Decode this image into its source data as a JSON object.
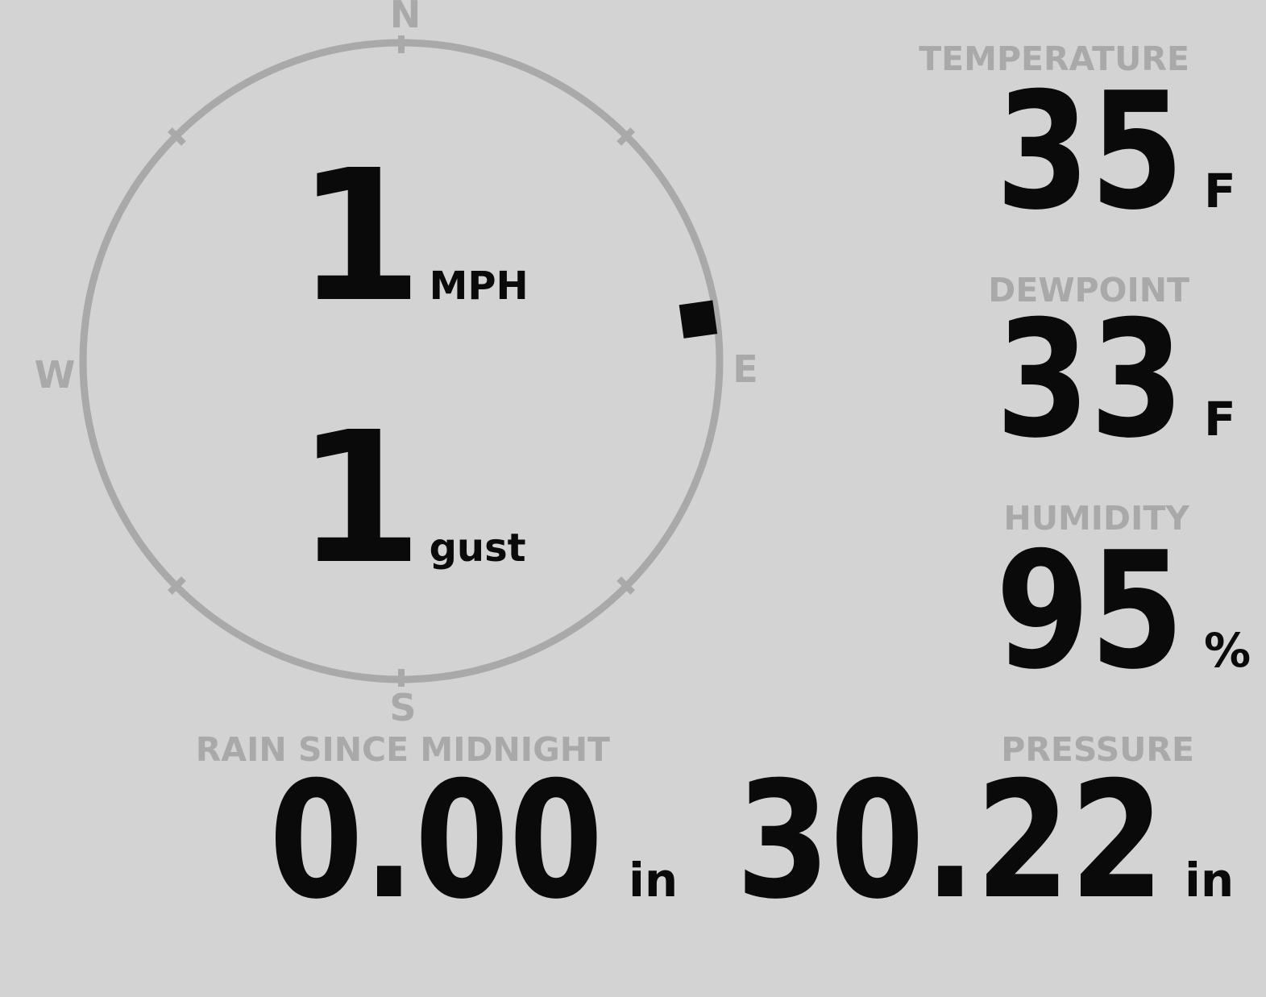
{
  "display": {
    "background_color": "#d3d3d3",
    "muted_color": "#a9a9a9",
    "text_color": "#0a0a0a"
  },
  "wind": {
    "speed": "1",
    "speed_unit": "MPH",
    "gust": "1",
    "gust_label": "gust",
    "direction_deg": 82,
    "compass": {
      "north": "N",
      "east": "E",
      "south": "S",
      "west": "W"
    }
  },
  "metrics": {
    "temperature": {
      "label": "TEMPERATURE",
      "value": "35",
      "unit": "F"
    },
    "dewpoint": {
      "label": "DEWPOINT",
      "value": "33",
      "unit": "F"
    },
    "humidity": {
      "label": "HUMIDITY",
      "value": "95",
      "unit": "%"
    },
    "rain_since_midnight": {
      "label": "RAIN SINCE MIDNIGHT",
      "value": "0.00",
      "unit": "in"
    },
    "pressure": {
      "label": "PRESSURE",
      "value": "30.22",
      "unit": "in"
    }
  }
}
